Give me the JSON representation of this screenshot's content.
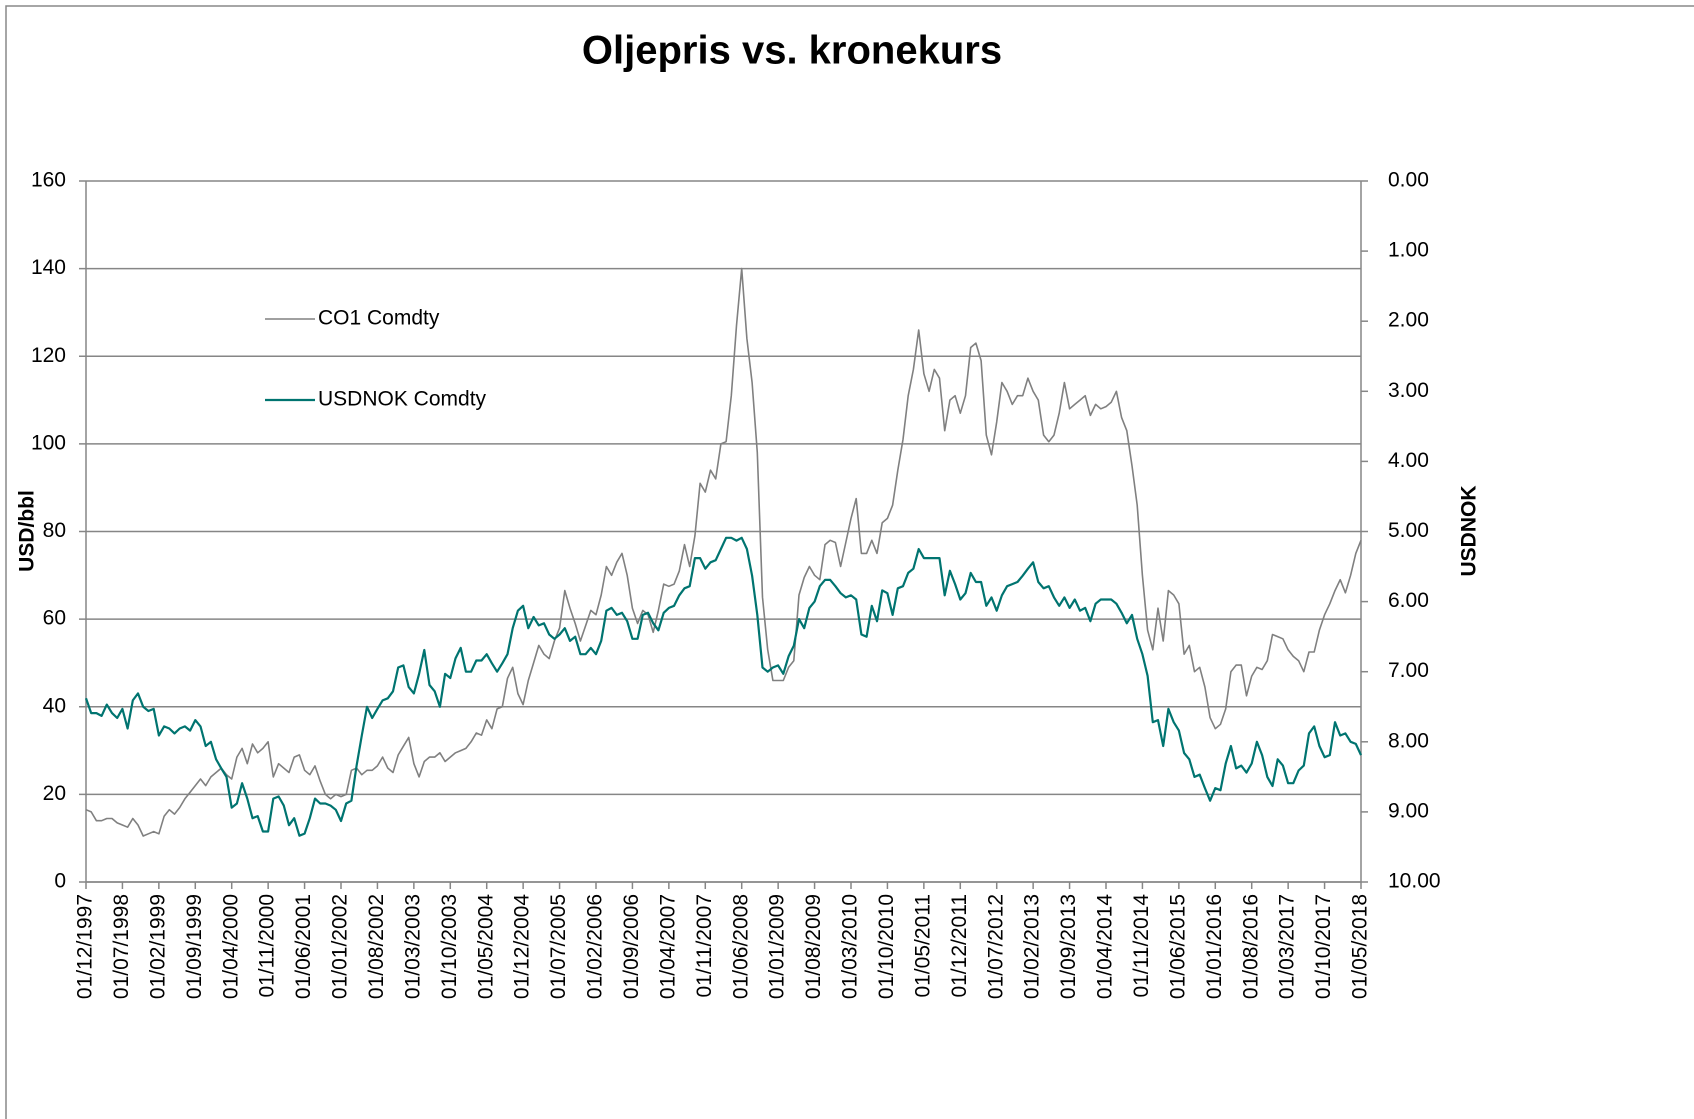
{
  "chart_data": {
    "type": "line",
    "title": "Oljepris vs. kronekurs",
    "ylabel": "USD/bbl",
    "y2label": "USDNOK",
    "legend": "upper left",
    "ylim": [
      0,
      160
    ],
    "yticks": [
      0,
      20,
      40,
      60,
      80,
      100,
      120,
      140,
      160
    ],
    "y2lim": [
      0,
      10
    ],
    "y2_inverted": true,
    "y2ticks": [
      {
        "value": 0,
        "label": "0.00"
      },
      {
        "value": 1,
        "label": "1.00"
      },
      {
        "value": 2,
        "label": "2.00"
      },
      {
        "value": 3,
        "label": "3.00"
      },
      {
        "value": 4,
        "label": "4.00"
      },
      {
        "value": 5,
        "label": "5.00"
      },
      {
        "value": 6,
        "label": "6.00"
      },
      {
        "value": 7,
        "label": "7.00"
      },
      {
        "value": 8,
        "label": "8.00"
      },
      {
        "value": 9,
        "label": "9.00"
      },
      {
        "value": 10,
        "label": "10.00"
      }
    ],
    "grid": true,
    "categories": [
      "01/12/1997",
      null,
      null,
      null,
      null,
      null,
      null,
      "01/07/1998",
      null,
      null,
      null,
      null,
      null,
      null,
      "01/02/1999",
      null,
      null,
      null,
      null,
      null,
      null,
      "01/09/1999",
      null,
      null,
      null,
      null,
      null,
      null,
      "01/04/2000",
      null,
      null,
      null,
      null,
      null,
      null,
      "01/11/2000",
      null,
      null,
      null,
      null,
      null,
      null,
      "01/06/2001",
      null,
      null,
      null,
      null,
      null,
      null,
      "01/01/2002",
      null,
      null,
      null,
      null,
      null,
      null,
      "01/08/2002",
      null,
      null,
      null,
      null,
      null,
      null,
      "01/03/2003",
      null,
      null,
      null,
      null,
      null,
      null,
      "01/10/2003",
      null,
      null,
      null,
      null,
      null,
      null,
      "01/05/2004",
      null,
      null,
      null,
      null,
      null,
      null,
      "01/12/2004",
      null,
      null,
      null,
      null,
      null,
      null,
      "01/07/2005",
      null,
      null,
      null,
      null,
      null,
      null,
      "01/02/2006",
      null,
      null,
      null,
      null,
      null,
      null,
      "01/09/2006",
      null,
      null,
      null,
      null,
      null,
      null,
      "01/04/2007",
      null,
      null,
      null,
      null,
      null,
      null,
      "01/11/2007",
      null,
      null,
      null,
      null,
      null,
      null,
      "01/06/2008",
      null,
      null,
      null,
      null,
      null,
      null,
      "01/01/2009",
      null,
      null,
      null,
      null,
      null,
      null,
      "01/08/2009",
      null,
      null,
      null,
      null,
      null,
      null,
      "01/03/2010",
      null,
      null,
      null,
      null,
      null,
      null,
      "01/10/2010",
      null,
      null,
      null,
      null,
      null,
      null,
      "01/05/2011",
      null,
      null,
      null,
      null,
      null,
      null,
      "01/12/2011",
      null,
      null,
      null,
      null,
      null,
      null,
      "01/07/2012",
      null,
      null,
      null,
      null,
      null,
      null,
      "01/02/2013",
      null,
      null,
      null,
      null,
      null,
      null,
      "01/09/2013",
      null,
      null,
      null,
      null,
      null,
      null,
      "01/04/2014",
      null,
      null,
      null,
      null,
      null,
      null,
      "01/11/2014",
      null,
      null,
      null,
      null,
      null,
      null,
      "01/06/2015",
      null,
      null,
      null,
      null,
      null,
      null,
      "01/01/2016",
      null,
      null,
      null,
      null,
      null,
      null,
      "01/08/2016",
      null,
      null,
      null,
      null,
      null,
      null,
      "01/03/2017",
      null,
      null,
      null,
      null,
      null,
      null,
      "01/10/2017",
      null,
      null,
      null,
      null,
      null,
      null,
      "01/05/2018"
    ],
    "series": [
      {
        "name": "CO1 Comdty",
        "color": "#808080",
        "values": [
          16.5,
          16,
          14,
          14,
          14.5,
          14.5,
          13.5,
          13,
          12.5,
          14.5,
          13,
          10.5,
          11,
          11.5,
          11,
          15,
          16.5,
          15.5,
          17,
          19,
          20.5,
          22,
          23.5,
          22,
          24,
          25,
          26,
          24.5,
          23.5,
          28.5,
          30.5,
          27,
          31.5,
          29.5,
          30.5,
          32,
          24,
          27,
          26,
          25,
          28.5,
          29,
          25.5,
          24.5,
          26.5,
          23,
          20,
          19,
          20,
          19.5,
          20,
          25.5,
          26,
          24.5,
          25.5,
          25.5,
          26.5,
          28.5,
          26,
          25,
          29,
          31,
          33,
          27,
          24,
          27.5,
          28.5,
          28.5,
          29.5,
          27.5,
          28.5,
          29.5,
          30,
          30.5,
          32,
          34,
          33.5,
          37,
          35,
          39.5,
          40,
          46.5,
          49,
          43,
          40.5,
          46,
          50,
          54,
          52,
          51,
          55,
          58,
          66.5,
          62.5,
          59,
          55,
          58.5,
          62,
          61,
          65.5,
          72,
          70,
          73,
          75,
          70,
          62.5,
          59,
          62,
          61,
          57,
          62,
          68,
          67.5,
          68,
          71,
          77,
          72,
          79,
          91,
          89,
          94,
          92,
          100,
          100.5,
          111,
          127,
          140,
          124,
          114,
          98,
          65,
          53,
          46,
          46,
          46,
          49,
          50.5,
          65.5,
          69.5,
          72,
          70,
          69,
          77,
          78,
          77.5,
          72,
          77.5,
          83,
          87.5,
          75,
          75,
          78,
          75,
          82,
          83,
          86,
          94,
          101,
          111,
          117,
          126,
          116,
          112,
          117,
          115,
          103,
          110,
          111,
          107,
          111,
          122,
          123,
          119,
          102,
          97.5,
          105,
          114,
          112,
          109,
          111,
          111,
          115,
          112,
          110,
          102,
          100.5,
          102,
          107,
          114,
          108,
          109,
          110,
          111,
          106.5,
          109,
          108,
          108.5,
          109.5,
          112,
          106,
          103,
          95,
          86,
          70,
          57.5,
          53,
          62.5,
          55,
          66.5,
          65.5,
          63.5,
          52,
          54,
          48,
          49,
          44.5,
          37.5,
          35,
          36,
          39.5,
          48,
          49.5,
          49.5,
          42.5,
          47,
          49,
          48.5,
          50.5,
          56.5,
          56,
          55.5,
          53,
          51.5,
          50.5,
          48,
          52.5,
          52.5,
          57.5,
          61,
          63.5,
          66.5,
          69,
          66,
          70,
          75,
          78
        ]
      },
      {
        "name": "USDNOK Comdty",
        "color": "#007470",
        "axis": "y2",
        "values": [
          7.38,
          7.59,
          7.59,
          7.63,
          7.47,
          7.59,
          7.66,
          7.53,
          7.81,
          7.41,
          7.31,
          7.5,
          7.56,
          7.53,
          7.91,
          7.78,
          7.81,
          7.88,
          7.81,
          7.78,
          7.84,
          7.69,
          7.78,
          8.06,
          8.0,
          8.25,
          8.38,
          8.5,
          8.94,
          8.88,
          8.59,
          8.81,
          9.09,
          9.06,
          9.28,
          9.28,
          8.81,
          8.78,
          8.91,
          9.19,
          9.09,
          9.34,
          9.31,
          9.09,
          8.81,
          8.88,
          8.88,
          8.91,
          8.97,
          9.13,
          8.88,
          8.84,
          8.34,
          7.91,
          7.5,
          7.66,
          7.53,
          7.41,
          7.38,
          7.28,
          6.94,
          6.91,
          7.22,
          7.31,
          7.03,
          6.69,
          7.19,
          7.28,
          7.5,
          7.03,
          7.09,
          6.81,
          6.66,
          7.0,
          7.0,
          6.84,
          6.84,
          6.75,
          6.88,
          7.0,
          6.88,
          6.75,
          6.38,
          6.13,
          6.06,
          6.38,
          6.22,
          6.34,
          6.31,
          6.47,
          6.53,
          6.47,
          6.38,
          6.56,
          6.5,
          6.75,
          6.75,
          6.66,
          6.75,
          6.56,
          6.13,
          6.09,
          6.19,
          6.16,
          6.28,
          6.53,
          6.53,
          6.19,
          6.16,
          6.31,
          6.41,
          6.16,
          6.09,
          6.06,
          5.91,
          5.81,
          5.78,
          5.38,
          5.38,
          5.53,
          5.44,
          5.41,
          5.25,
          5.09,
          5.09,
          5.13,
          5.09,
          5.25,
          5.63,
          6.19,
          6.94,
          7.0,
          6.94,
          6.91,
          7.03,
          6.78,
          6.63,
          6.25,
          6.38,
          6.09,
          6.0,
          5.78,
          5.69,
          5.69,
          5.78,
          5.88,
          5.94,
          5.91,
          5.97,
          6.47,
          6.5,
          6.06,
          6.28,
          5.84,
          5.88,
          6.19,
          5.81,
          5.78,
          5.59,
          5.53,
          5.25,
          5.38,
          5.38,
          5.38,
          5.38,
          5.91,
          5.56,
          5.75,
          5.97,
          5.88,
          5.59,
          5.72,
          5.72,
          6.06,
          5.94,
          6.13,
          5.91,
          5.78,
          5.75,
          5.72,
          5.63,
          5.53,
          5.44,
          5.72,
          5.81,
          5.78,
          5.94,
          6.06,
          5.94,
          6.09,
          5.97,
          6.13,
          6.09,
          6.28,
          6.03,
          5.97,
          5.97,
          5.97,
          6.03,
          6.16,
          6.31,
          6.19,
          6.53,
          6.75,
          7.06,
          7.72,
          7.69,
          8.06,
          7.53,
          7.72,
          7.84,
          8.16,
          8.25,
          8.5,
          8.47,
          8.66,
          8.84,
          8.66,
          8.69,
          8.31,
          8.06,
          8.38,
          8.34,
          8.44,
          8.31,
          8.0,
          8.19,
          8.5,
          8.63,
          8.25,
          8.34,
          8.59,
          8.59,
          8.41,
          8.34,
          7.88,
          7.78,
          8.06,
          8.22,
          8.19,
          7.72,
          7.91,
          7.88,
          8.0,
          8.03,
          8.19
        ]
      }
    ]
  }
}
